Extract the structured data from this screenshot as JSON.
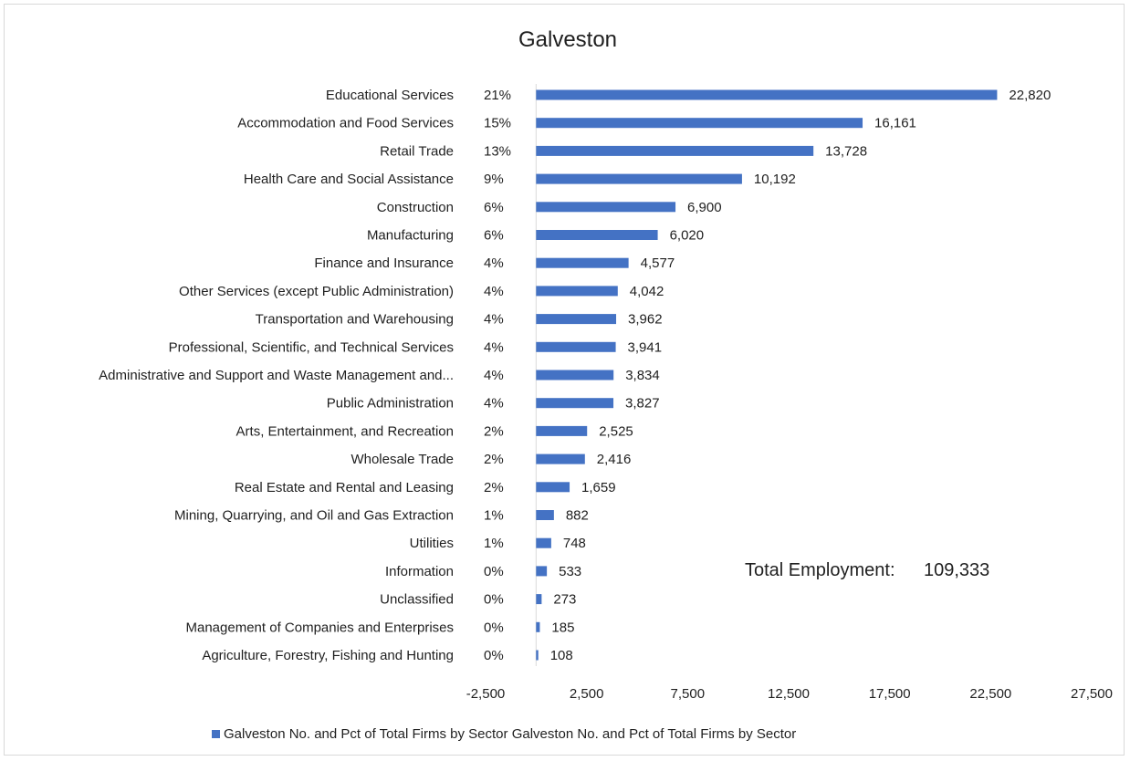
{
  "chart_data": {
    "type": "bar",
    "orientation": "horizontal",
    "title": "Galveston",
    "categories": [
      "Educational Services",
      "Accommodation and Food Services",
      "Retail Trade",
      "Health Care and Social Assistance",
      "Construction",
      "Manufacturing",
      "Finance and Insurance",
      "Other Services (except Public Administration)",
      "Transportation and Warehousing",
      "Professional, Scientific, and Technical Services",
      "Administrative and Support and Waste Management and...",
      "Public Administration",
      "Arts, Entertainment, and Recreation",
      "Wholesale Trade",
      "Real Estate and Rental and Leasing",
      "Mining, Quarrying, and Oil and Gas Extraction",
      "Utilities",
      "Information",
      "Unclassified",
      "Management of Companies and Enterprises",
      "Agriculture, Forestry, Fishing and Hunting"
    ],
    "percent_labels": [
      "21%",
      "15%",
      "13%",
      "9%",
      "6%",
      "6%",
      "4%",
      "4%",
      "4%",
      "4%",
      "4%",
      "4%",
      "2%",
      "2%",
      "2%",
      "1%",
      "1%",
      "0%",
      "0%",
      "0%",
      "0%"
    ],
    "series": [
      {
        "name": "Galveston No. and Pct of Total Firms by Sector Galveston No. and Pct of Total Firms by Sector",
        "values": [
          22820,
          16161,
          13728,
          10192,
          6900,
          6020,
          4577,
          4042,
          3962,
          3941,
          3834,
          3827,
          2525,
          2416,
          1659,
          882,
          748,
          533,
          273,
          185,
          108
        ],
        "value_labels": [
          "22,820",
          "16,161",
          "13,728",
          "10,192",
          "6,900",
          "6,020",
          "4,577",
          "4,042",
          "3,962",
          "3,941",
          "3,834",
          "3,827",
          "2,525",
          "2,416",
          "1,659",
          "882",
          "748",
          "533",
          "273",
          "185",
          "108"
        ]
      }
    ],
    "xlim": [
      -2500,
      27500
    ],
    "xticks": [
      -2500,
      2500,
      7500,
      12500,
      17500,
      22500,
      27500
    ],
    "xtick_labels": [
      "-2,500",
      "2,500",
      "7,500",
      "12,500",
      "17,500",
      "22,500",
      "27,500"
    ],
    "grid": false,
    "legend_position": "bottom",
    "annotation": {
      "label": "Total Employment:",
      "value": "109,333"
    },
    "colors": {
      "bar": "#4472c4",
      "axis": "#d9d9d9",
      "text": "#1f1f1f"
    }
  }
}
